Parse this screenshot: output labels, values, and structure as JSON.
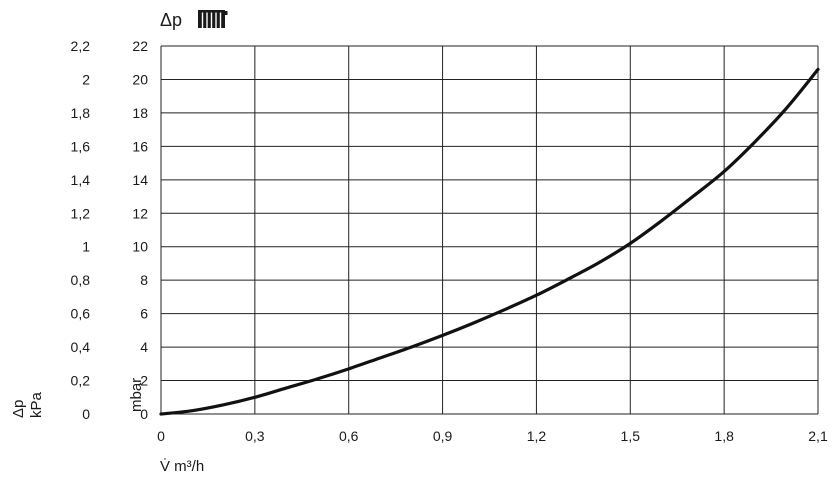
{
  "chart_data": {
    "type": "line",
    "title": "Δp",
    "title_icon": "radiator-icon",
    "xlabel": "V̇ m³/h",
    "ylabel_primary": "mbar",
    "ylabel_secondary": [
      "Δp",
      "kPa"
    ],
    "xlim": [
      0,
      2.1
    ],
    "ylim": [
      0,
      22
    ],
    "ylim_secondary": [
      0,
      2.2
    ],
    "x_ticks": [
      "0",
      "0,3",
      "0,6",
      "0,9",
      "1,2",
      "1,5",
      "1,8",
      "2,1"
    ],
    "x_tick_values": [
      0,
      0.3,
      0.6,
      0.9,
      1.2,
      1.5,
      1.8,
      2.1
    ],
    "y_ticks": [
      "0",
      "2",
      "4",
      "6",
      "8",
      "10",
      "12",
      "14",
      "16",
      "18",
      "20",
      "22"
    ],
    "y_tick_values": [
      0,
      2,
      4,
      6,
      8,
      10,
      12,
      14,
      16,
      18,
      20,
      22
    ],
    "y2_ticks": [
      "0",
      "0,2",
      "0,4",
      "0,6",
      "0,8",
      "1",
      "1,2",
      "1,4",
      "1,6",
      "1,8",
      "2",
      "2,2"
    ],
    "grid": true,
    "series": [
      {
        "x": [
          0,
          0.1,
          0.2,
          0.3,
          0.4,
          0.5,
          0.6,
          0.7,
          0.8,
          0.9,
          1.0,
          1.1,
          1.2,
          1.3,
          1.4,
          1.5,
          1.6,
          1.7,
          1.8,
          1.9,
          2.0,
          2.1
        ],
        "y": [
          0,
          0.2,
          0.55,
          1.0,
          1.55,
          2.1,
          2.7,
          3.35,
          4.0,
          4.7,
          5.45,
          6.25,
          7.1,
          8.05,
          9.05,
          10.2,
          11.55,
          13.0,
          14.5,
          16.3,
          18.3,
          20.6
        ],
        "color": "#111111"
      }
    ]
  }
}
